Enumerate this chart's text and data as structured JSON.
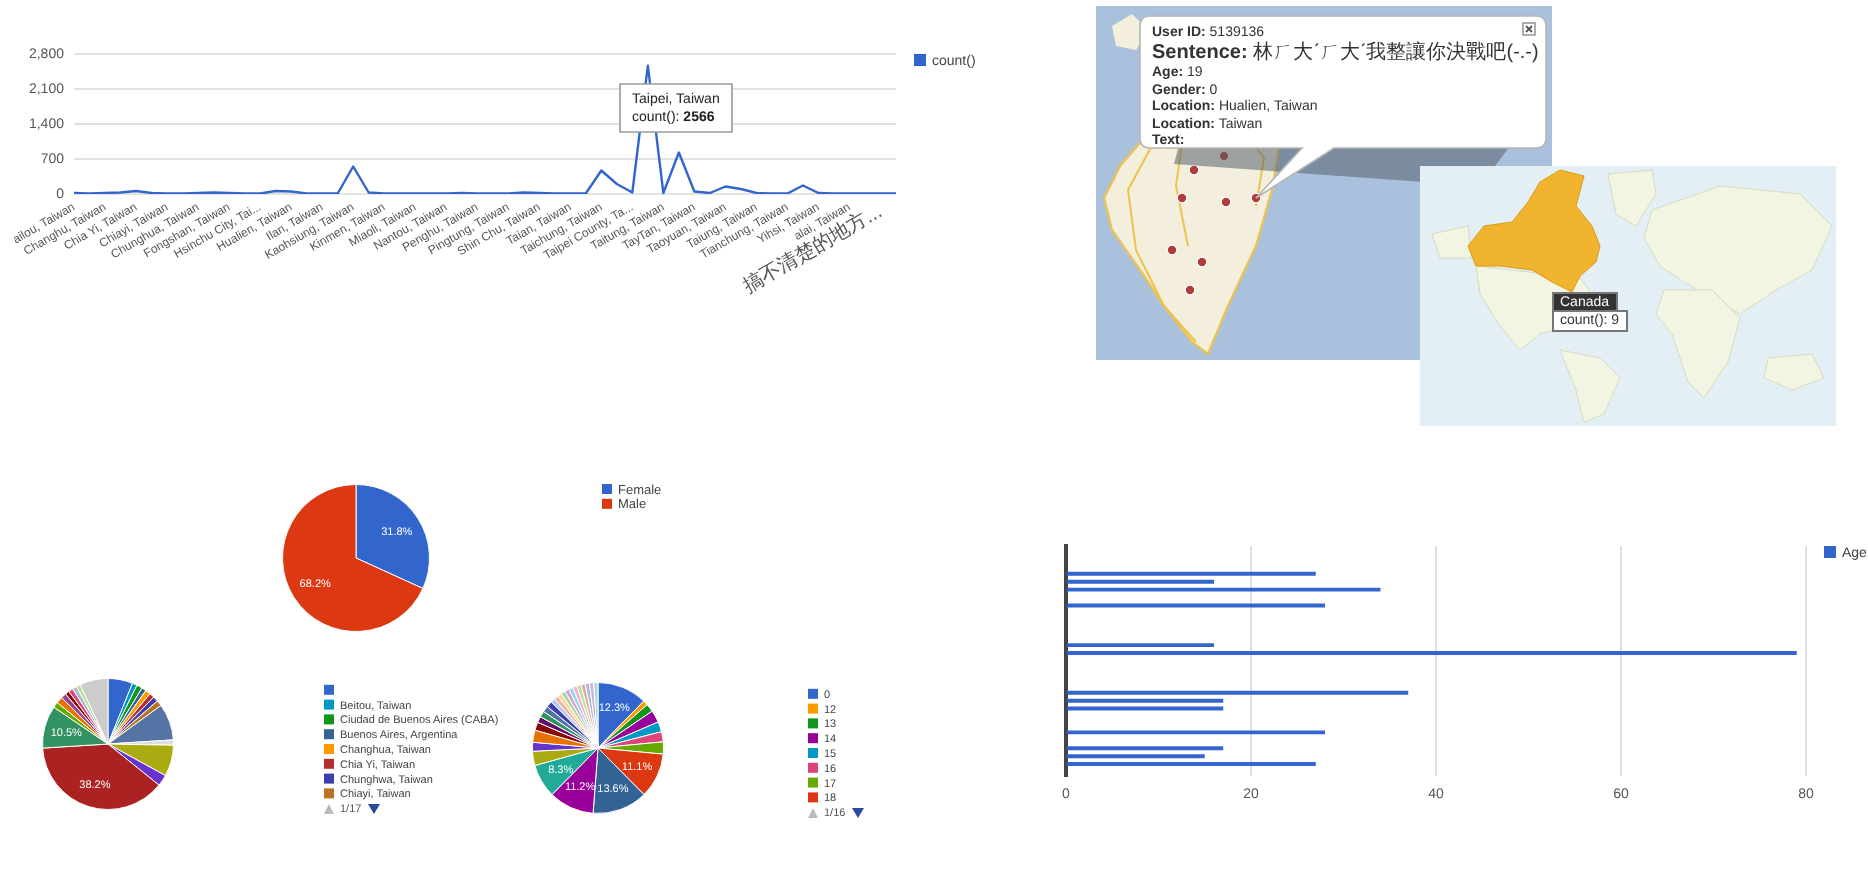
{
  "chart_data": [
    {
      "type": "line",
      "categories": [
        "ailou, Taiwan",
        null,
        "Changhu, Taiwan",
        null,
        "Chia Yi, Taiwan",
        null,
        "Chiayi, Taiwan",
        null,
        "Chunghua, Taiwan",
        null,
        "Fongshan, Taiwan",
        null,
        "Hsinchu City, Tai...",
        null,
        "Hualien, Taiwan",
        null,
        "Ilan, Taiwan",
        null,
        "Kaohsiung, Taiwan",
        null,
        "Kinmen, Taiwan",
        null,
        "Miaoli, Taiwan",
        null,
        "Nantou, Taiwan",
        null,
        "Penghu, Taiwan",
        null,
        "Pingtung, Taiwan",
        null,
        "Shin Chu, Taiwan",
        null,
        "Taian, Taiwan",
        null,
        "Taichung, Taiwan",
        null,
        "Taipei County, Ta...",
        null,
        "Taitung, Taiwan",
        null,
        "TayTan, Taiwan",
        null,
        "Taoyuan, Taiwan",
        null,
        "Taiung, Taiwan",
        null,
        "Tianchung, Taiwan",
        null,
        "Yihsi, Taiwan",
        null,
        "alai, Taiwan",
        null,
        "搞不清楚的地方...",
        null
      ],
      "series": [
        {
          "name": "count()",
          "color": "#3366cc",
          "values": [
            20,
            10,
            20,
            30,
            60,
            20,
            10,
            10,
            20,
            30,
            20,
            10,
            10,
            60,
            50,
            10,
            10,
            10,
            550,
            30,
            10,
            10,
            10,
            10,
            10,
            20,
            10,
            10,
            10,
            30,
            20,
            10,
            10,
            10,
            470,
            200,
            30,
            2566,
            20,
            830,
            50,
            20,
            150,
            100,
            20,
            10,
            10,
            170,
            20,
            10,
            10,
            10,
            10,
            10
          ]
        }
      ],
      "ylim": [
        0,
        2800
      ],
      "yticks": [
        0,
        700,
        {
          "value": 1400,
          "label": "1,400"
        },
        {
          "value": 2100,
          "label": "2,100"
        },
        {
          "value": 2800,
          "label": "2,800"
        }
      ],
      "grid": "y",
      "legend": "top right",
      "annotations": [
        "Taipei, Taiwan",
        "count(): 2566"
      ]
    },
    {
      "type": "other",
      "annotations": [
        "User ID: 5139136",
        "Sentence: 林ㄏ大ˊㄏ大ˊ我整讓你決戰吧(-.-)",
        "Age: 19",
        "Gender: 0",
        "Location: Hualien, Taiwan",
        "Location: Taiwan",
        "Text:"
      ]
    },
    {
      "type": "other",
      "annotations": [
        "Canada",
        "count(): 9"
      ]
    },
    {
      "type": "pie",
      "categories": [
        "Female",
        "Male"
      ],
      "values": [
        31.8,
        68.2
      ],
      "colors": [
        "#3366cc",
        "#dc3912"
      ],
      "value_labels": [
        "31.8%",
        "68.2%"
      ],
      "legend": "top right"
    },
    {
      "type": "pie",
      "categories": [
        null,
        "Beitou, Taiwan",
        "Ciudad de Buenos Aires (CABA)",
        "Buenos Aires, Argentina",
        "Changhua, Taiwan",
        "Chia Yi, Taiwan",
        "Chunghwa, Taiwan",
        "Chiayi, Taiwan",
        null,
        null,
        null,
        null,
        null,
        null,
        null,
        null,
        null,
        null,
        null,
        null,
        null,
        null
      ],
      "values": [
        6.1,
        1.2,
        1.4,
        1.1,
        1.3,
        1.2,
        1.3,
        1.4,
        9.0,
        1.3,
        7.7,
        2.8,
        38.2,
        10.5,
        1.4,
        1.6,
        1.3,
        1.0,
        1.1,
        1.1,
        1.0,
        7.0
      ],
      "colors": [
        "#3366cc",
        "#0099c6",
        "#109618",
        "#316395",
        "#ff9900",
        "#b82e2e",
        "#3b3eac",
        "#b77322",
        "#5574a6",
        "#dddddd",
        "#aaaa11",
        "#6633cc",
        "#aa2222",
        "#329262",
        "#66aa00",
        "#e67300",
        "#994499",
        "#8b0707",
        "#dd4477",
        "#a8bdd6",
        "#c2dd99",
        "#cccccc"
      ],
      "value_labels": [
        null,
        null,
        null,
        null,
        null,
        null,
        null,
        null,
        null,
        null,
        null,
        null,
        "38.2%",
        "10.5%",
        null,
        null,
        null,
        null,
        null,
        null,
        null,
        null
      ],
      "legend": "right",
      "annotations": [
        "1/17"
      ]
    },
    {
      "type": "pie",
      "categories": [
        "0",
        "12",
        "13",
        "14",
        "15",
        "16",
        "17",
        "18",
        null,
        null,
        null,
        null,
        null,
        null,
        null,
        null,
        null,
        null,
        null,
        null,
        null,
        null,
        null,
        null,
        null,
        null,
        null,
        null,
        null,
        null,
        null
      ],
      "values": [
        12.3,
        1.2,
        2.0,
        3.0,
        2.5,
        2.5,
        3.0,
        11.1,
        13.6,
        11.2,
        8.3,
        3.5,
        2.2,
        3.0,
        2.0,
        1.5,
        1.5,
        1.5,
        1.5,
        1.05,
        1.05,
        1.05,
        1.05,
        1.05,
        1.05,
        1.05,
        1.05,
        1.05,
        1.05,
        1.05,
        1.05
      ],
      "colors": [
        "#3366cc",
        "#ff9900",
        "#109618",
        "#990099",
        "#0099c6",
        "#dd4477",
        "#66aa00",
        "#dc3912",
        "#316395",
        "#990099",
        "#22aa99",
        "#aaaa11",
        "#6633cc",
        "#e67300",
        "#8b0707",
        "#651067",
        "#329262",
        "#5574a6",
        "#3b3eac",
        "#b5c7ea",
        "#f0b3a6",
        "#ffd699",
        "#a3d6a3",
        "#d6a3d6",
        "#99d6e8",
        "#f1b3c7",
        "#c2dd99",
        "#e3abab",
        "#a8bdd6",
        "#d6b0d6",
        "#a6ddd6"
      ],
      "value_labels": [
        "12.3%",
        null,
        null,
        null,
        null,
        null,
        null,
        "11.1%",
        "13.6%",
        "11.2%",
        "8.3%",
        null,
        null,
        null,
        null,
        null,
        null,
        null,
        null,
        null,
        null,
        null,
        null,
        null,
        null,
        null,
        null,
        null,
        null,
        null,
        null
      ],
      "legend": "right",
      "annotations": [
        "1/16"
      ]
    },
    {
      "type": "bar",
      "orientation": "horizontal",
      "categories": [
        null,
        null,
        null,
        null,
        null,
        null,
        null,
        null,
        null,
        null,
        null,
        null,
        null,
        null,
        null,
        null,
        null,
        null,
        null,
        null,
        null,
        null,
        null,
        null,
        null,
        null,
        null,
        null,
        null
      ],
      "series": [
        {
          "name": "Age",
          "color": "#3366cc",
          "values": [
            null,
            null,
            null,
            27,
            16,
            34,
            null,
            28,
            null,
            null,
            null,
            null,
            16,
            79,
            null,
            null,
            null,
            null,
            37,
            17,
            17,
            null,
            null,
            28,
            null,
            17,
            15,
            27,
            null
          ]
        }
      ],
      "xlim": [
        0,
        80
      ],
      "xticks": [
        0,
        20,
        40,
        60,
        80
      ],
      "grid": "x",
      "legend": "top right"
    }
  ]
}
